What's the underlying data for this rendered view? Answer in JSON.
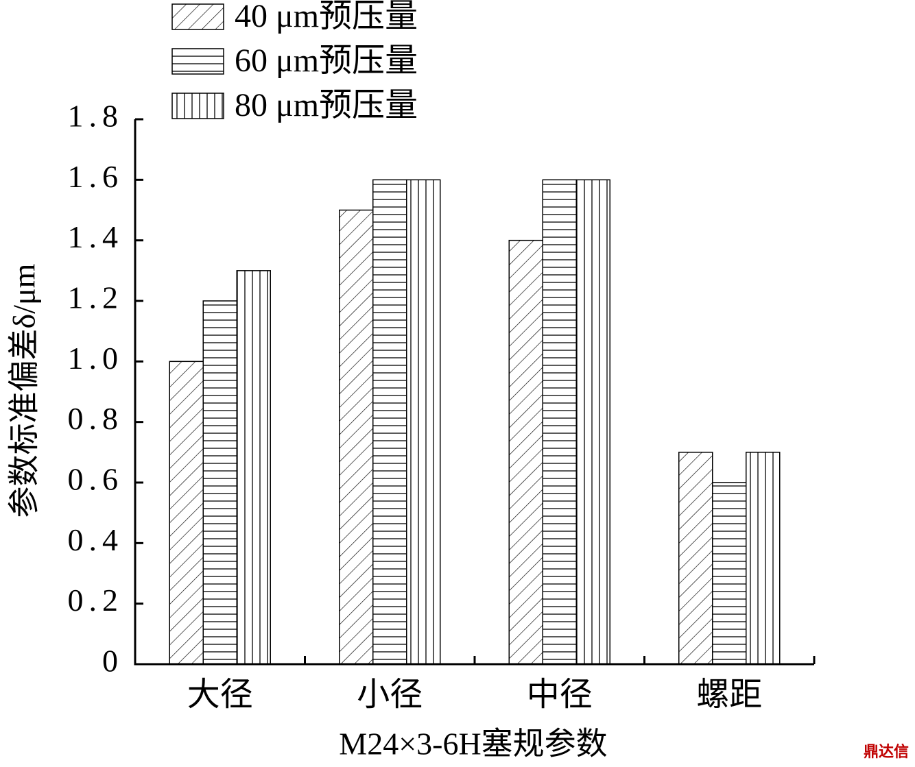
{
  "chart_data": {
    "type": "bar",
    "categories": [
      "大径",
      "小径",
      "中径",
      "螺距"
    ],
    "series": [
      {
        "name": "40 μm预压量",
        "color": "#000000",
        "hatch": "diagonal",
        "values": [
          1.0,
          1.5,
          1.4,
          0.7
        ]
      },
      {
        "name": "60 μm预压量",
        "color": "#000000",
        "hatch": "horizontal",
        "values": [
          1.2,
          1.6,
          1.6,
          0.6
        ]
      },
      {
        "name": "80 μm预压量",
        "color": "#000000",
        "hatch": "vertical",
        "values": [
          1.3,
          1.6,
          1.6,
          0.7
        ]
      }
    ],
    "ylabel": "参数标准偏差δ/μm",
    "xlabel": "M24×3-6H塞规参数",
    "ylim": [
      0,
      1.8
    ],
    "yticks": [
      0,
      0.2,
      0.4,
      0.6,
      0.8,
      {
        "value": 1,
        "label": "1.0"
      },
      1.2,
      1.4,
      1.6,
      1.8
    ],
    "legend": "top-left",
    "watermark": "鼎达信"
  }
}
